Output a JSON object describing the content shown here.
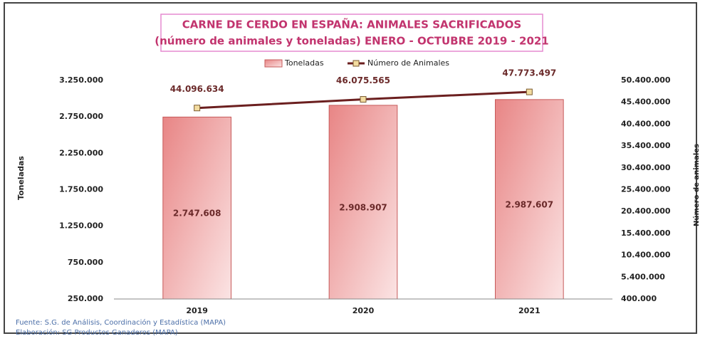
{
  "chart_data": {
    "type": "bar_line",
    "title": "CARNE DE CERDO EN ESPAÑA: ANIMALES SACRIFICADOS",
    "subtitle": "(número de animales y toneladas)  ENERO - OCTUBRE 2019 - 2021",
    "y_label": "Toneladas",
    "y2_label": "Número de animales",
    "categories": [
      "2019",
      "2020",
      "2021"
    ],
    "series": [
      {
        "name": "Toneladas",
        "type": "bar",
        "color": "#e88585",
        "values": [
          2747608,
          2908907,
          2987607
        ],
        "value_labels": [
          "2.747.608",
          "2.908.907",
          "2.987.607"
        ]
      },
      {
        "name": "Número de Animales",
        "type": "line",
        "axis": "y2",
        "color": "#6b1f1f",
        "values": [
          44096634,
          46075565,
          47773497
        ],
        "value_labels": [
          "44.096.634",
          "46.075.565",
          "47.773.497"
        ]
      }
    ],
    "ylim": [
      250000,
      3250000
    ],
    "yticks": [
      {
        "value": 250000,
        "label": "250.000"
      },
      {
        "value": 750000,
        "label": "750.000"
      },
      {
        "value": 1250000,
        "label": "1.250.000"
      },
      {
        "value": 1750000,
        "label": "1.750.000"
      },
      {
        "value": 2250000,
        "label": "2.250.000"
      },
      {
        "value": 2750000,
        "label": "2.750.000"
      },
      {
        "value": 3250000,
        "label": "3.250.000"
      }
    ],
    "y2lim": [
      400000,
      50400000
    ],
    "y2ticks": [
      {
        "value": 400000,
        "label": "400.000"
      },
      {
        "value": 5400000,
        "label": "5.400.000"
      },
      {
        "value": 10400000,
        "label": "10.400.000"
      },
      {
        "value": 15400000,
        "label": "15.400.000"
      },
      {
        "value": 20400000,
        "label": "20.400.000"
      },
      {
        "value": 25400000,
        "label": "25.400.000"
      },
      {
        "value": 30400000,
        "label": "30.400.000"
      },
      {
        "value": 35400000,
        "label": "35.400.000"
      },
      {
        "value": 40400000,
        "label": "40.400.000"
      },
      {
        "value": 45400000,
        "label": "45.400.000"
      },
      {
        "value": 50400000,
        "label": "50.400.000"
      }
    ],
    "legend": "top",
    "grid": false,
    "sources": [
      "Fuente: S.G. de Análisis, Coordinación y Estadística (MAPA)",
      "Elaboración: SG Productos Ganaderos (MAPA)"
    ]
  }
}
